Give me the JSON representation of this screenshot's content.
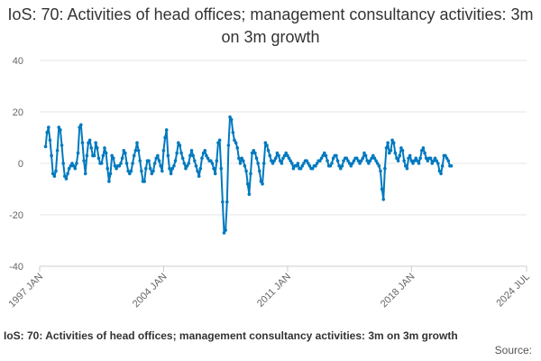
{
  "chart_data": {
    "type": "line",
    "title": "IoS: 70: Activities of head offices; management consultancy activities: 3m on 3m growth",
    "xlabel": "",
    "ylabel": "",
    "x_range": [
      1997.0,
      2024.5
    ],
    "ylim": [
      -40,
      40
    ],
    "y_ticks": [
      40,
      20,
      0,
      -20,
      -40
    ],
    "x_ticks": [
      {
        "label": "1997 JAN",
        "value": 1997.0
      },
      {
        "label": "2004 JAN",
        "value": 2004.0
      },
      {
        "label": "2011 JAN",
        "value": 2011.0
      },
      {
        "label": "2018 JAN",
        "value": 2018.0
      },
      {
        "label": "2024 JUL",
        "value": 2024.5
      }
    ],
    "series": [
      {
        "name": "3m on 3m growth",
        "color": "#0079bf",
        "x_start": 1997.333,
        "step": 0.08333,
        "values": [
          6.5,
          12,
          14,
          9,
          3,
          -4,
          -5,
          -3,
          5,
          14,
          13,
          7,
          0,
          -5,
          -6,
          -4,
          -2,
          -1,
          0,
          -1,
          -2,
          0,
          4,
          14,
          15,
          8,
          1,
          -4,
          3,
          8,
          9,
          6,
          3,
          3,
          8,
          6,
          2,
          0,
          0,
          3,
          6,
          4,
          -2,
          -7,
          -4,
          3,
          2,
          -1,
          -2,
          -1,
          -1,
          0,
          2,
          5,
          4,
          0,
          -3,
          -4,
          -3,
          0,
          3,
          5,
          8,
          5,
          1,
          -3,
          -7,
          -7,
          -2,
          1,
          1,
          -2,
          -4,
          -3,
          0,
          2,
          3,
          1,
          -1,
          -3,
          5,
          10,
          13,
          3,
          -2,
          -4,
          -2,
          -1,
          1,
          4,
          8,
          7,
          4,
          2,
          0,
          -2,
          -1,
          0,
          3,
          5,
          3,
          1,
          -1,
          -3,
          -5,
          -2,
          2,
          4,
          5,
          3,
          2,
          1,
          1,
          0,
          -2,
          -4,
          1,
          8,
          9,
          -2,
          -15,
          -27,
          -26,
          -15,
          7,
          18,
          17,
          12,
          9,
          8,
          6,
          2,
          0,
          2,
          1,
          -1,
          -3,
          -8,
          -12,
          -4,
          4,
          5,
          4,
          2,
          0,
          -3,
          -7,
          -8,
          0,
          8,
          7,
          5,
          3,
          1,
          0,
          1,
          2,
          4,
          3,
          1,
          0,
          2,
          3,
          4,
          3,
          2,
          1,
          0,
          -2,
          -1,
          -1,
          0,
          -2,
          -2,
          -1,
          0,
          1,
          1,
          0,
          -1,
          -2,
          -2,
          -1,
          -1,
          0,
          1,
          1,
          2,
          3,
          4,
          3,
          1,
          -1,
          -1,
          0,
          2,
          3,
          3,
          1,
          -1,
          -2,
          -1,
          1,
          2,
          2,
          1,
          0,
          -1,
          0,
          1,
          2,
          2,
          1,
          0,
          1,
          2,
          4,
          3,
          1,
          0,
          1,
          2,
          3,
          2,
          1,
          0,
          -1,
          -3,
          -10,
          -14,
          -2,
          6,
          8,
          4,
          5,
          9,
          8,
          4,
          2,
          1,
          3,
          6,
          5,
          1,
          -1,
          -2,
          2,
          3,
          1,
          0,
          1,
          2,
          1,
          0,
          2,
          5,
          6,
          4,
          2,
          1,
          2,
          2,
          0,
          1,
          2,
          1,
          0,
          -3,
          -4,
          -1,
          3,
          3,
          2,
          1,
          -1,
          -1
        ]
      }
    ],
    "grid": true,
    "legend": "none"
  },
  "footer": {
    "title": "IoS: 70: Activities of head offices; management consultancy activities: 3m on 3m growth",
    "source": "Source:"
  }
}
